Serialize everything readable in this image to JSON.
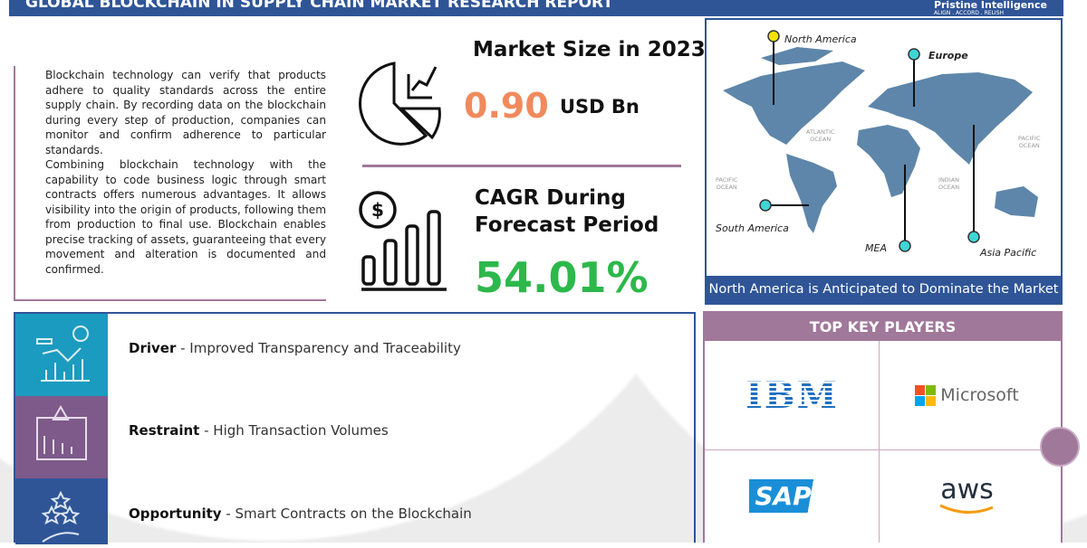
{
  "header": {
    "title": "GLOBAL BLOCKCHAIN IN SUPPLY CHAIN MARKET RESEARCH REPORT",
    "logo_name": "Pristine Intelligence",
    "logo_tagline": "ALIGN . ACCORD . RELISH"
  },
  "intro": {
    "paragraphs": [
      "Blockchain technology can verify that products adhere to quality standards across the entire supply chain. By recording data on the blockchain during every step of production, companies can monitor and confirm adherence to particular standards.",
      "Combining blockchain technology with the capability to code business logic through smart contracts offers numerous advantages. It allows visibility into the origin of products, following them from production to final use. Blockchain enables precise tracking of assets, guaranteeing that every movement and alteration is documented and confirmed."
    ]
  },
  "market_size": {
    "heading": "Market Size in 2023",
    "value": "0.90",
    "unit": "USD Bn",
    "value_color": "#f08a5d"
  },
  "cagr": {
    "heading_line1": "CAGR During",
    "heading_line2": "Forecast Period",
    "value": "54.01%",
    "value_color": "#2db84b"
  },
  "map": {
    "regions": [
      "North America",
      "Europe",
      "South America",
      "MEA",
      "Asia Pacific"
    ],
    "oceans": {
      "atlantic": [
        "ATLANTIC",
        "OCEAN"
      ],
      "pacific_left": [
        "PACIFIC",
        "OCEAN"
      ],
      "pacific_right": [
        "PACIFIC",
        "OCEAN"
      ],
      "indian": [
        "INDIAN",
        "OCEAN"
      ]
    },
    "caption": "North America is Anticipated to Dominate the Market"
  },
  "factors": [
    {
      "type": "Driver",
      "text": "Improved Transparency and Traceability",
      "color": "#1b9bbf"
    },
    {
      "type": "Restraint",
      "text": "High Transaction Volumes",
      "color": "#7d5a8a"
    },
    {
      "type": "Opportunity",
      "text": "Smart Contracts on the Blockchain",
      "color": "#2f5597"
    }
  ],
  "players": {
    "heading": "TOP KEY PLAYERS",
    "names": [
      "IBM",
      "Microsoft",
      "SAP",
      "aws"
    ]
  }
}
